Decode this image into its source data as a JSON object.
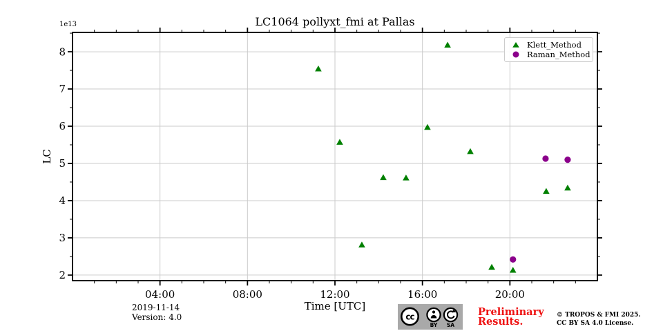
{
  "colors": {
    "klett_green": "#008000",
    "raman_purple": "#8B008B",
    "grid_gray": "#cbcbcb",
    "axis_black": "#000000",
    "preliminary_red": "#ee1111",
    "badge_gray": "#a9a9a9"
  },
  "footer": {
    "date": "2019-11-14",
    "version": "Version: 4.0",
    "preliminary_line1": "Preliminary",
    "preliminary_line2": "Results.",
    "copyright_line1": "© TROPOS & FMI 2025.",
    "copyright_line2": "CC BY SA 4.0 License.",
    "cc_badge": {
      "cc": "cc",
      "by": "BY",
      "sa": "SA"
    }
  },
  "chart_data": {
    "type": "scatter",
    "title": "LC1064 pollyxt_fmi at Pallas",
    "xlabel": "Time [UTC]",
    "ylabel": "LC",
    "y_offset_text": "1e13",
    "y_unit_multiplier": "1e13",
    "grid": "major-only",
    "legend_position": "upper-right",
    "xlim_hours": [
      0,
      24
    ],
    "ylim": [
      1.85,
      8.52
    ],
    "x_major_ticks": [
      {
        "hour": 4,
        "label": "04:00"
      },
      {
        "hour": 8,
        "label": "08:00"
      },
      {
        "hour": 12,
        "label": "12:00"
      },
      {
        "hour": 16,
        "label": "16:00"
      },
      {
        "hour": 20,
        "label": "20:00"
      }
    ],
    "x_minor_step_hours": 1,
    "y_major_ticks": [
      2,
      3,
      4,
      5,
      6,
      7,
      8
    ],
    "y_minor_step": 0.5,
    "series": [
      {
        "name": "Klett_Method",
        "marker": "triangle",
        "color": "#008000",
        "points": [
          {
            "t_hours": 11.24,
            "time": "11:14",
            "lc": 7.54
          },
          {
            "t_hours": 12.22,
            "time": "12:13",
            "lc": 5.57
          },
          {
            "t_hours": 13.23,
            "time": "13:14",
            "lc": 2.81
          },
          {
            "t_hours": 14.21,
            "time": "14:13",
            "lc": 4.62
          },
          {
            "t_hours": 15.25,
            "time": "15:15",
            "lc": 4.61
          },
          {
            "t_hours": 16.23,
            "time": "16:14",
            "lc": 5.97
          },
          {
            "t_hours": 17.15,
            "time": "17:09",
            "lc": 8.18
          },
          {
            "t_hours": 18.19,
            "time": "18:11",
            "lc": 5.32
          },
          {
            "t_hours": 19.17,
            "time": "19:10",
            "lc": 2.21
          },
          {
            "t_hours": 20.14,
            "time": "20:08",
            "lc": 2.13
          },
          {
            "t_hours": 21.66,
            "time": "21:40",
            "lc": 4.25
          },
          {
            "t_hours": 22.64,
            "time": "22:38",
            "lc": 4.34
          }
        ]
      },
      {
        "name": "Raman_Method",
        "marker": "circle",
        "color": "#8B008B",
        "points": [
          {
            "t_hours": 20.14,
            "time": "20:08",
            "lc": 2.42
          },
          {
            "t_hours": 21.63,
            "time": "21:38",
            "lc": 5.13
          },
          {
            "t_hours": 22.64,
            "time": "22:38",
            "lc": 5.1
          }
        ]
      }
    ]
  }
}
